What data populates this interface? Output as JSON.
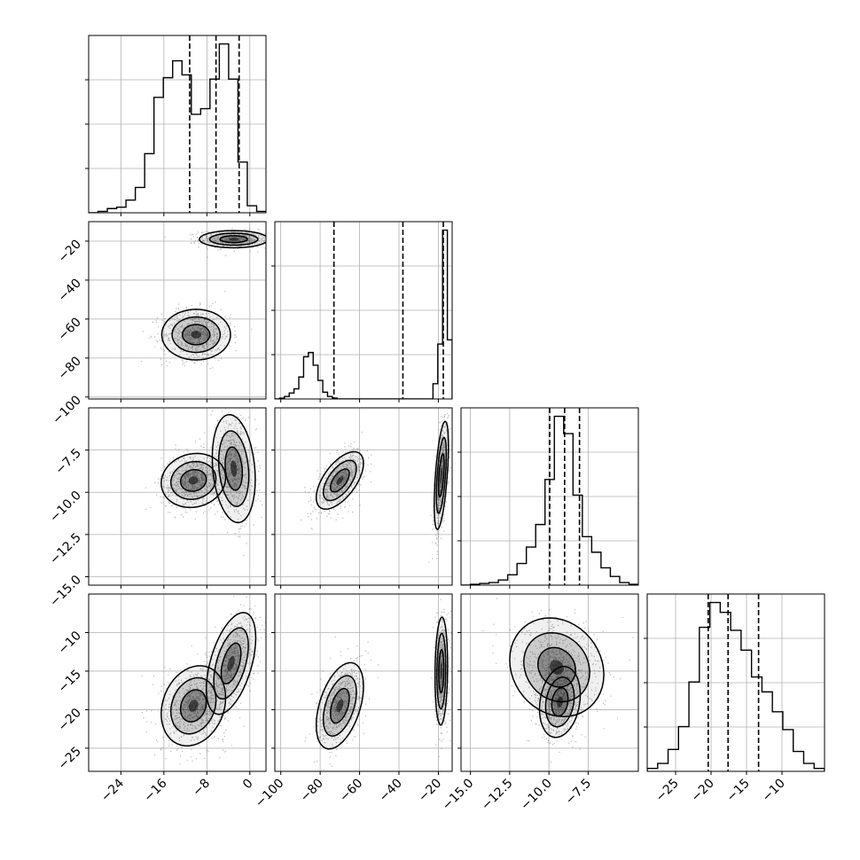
{
  "chart_data": {
    "type": "corner",
    "title": "",
    "grid": true,
    "colors": {
      "line": "#000000",
      "grid": "#b0b0b0",
      "scatter": "#000000",
      "density": "#000000"
    },
    "variables": [
      {
        "xlim": [
          -30,
          3
        ],
        "ticks": [
          -24,
          -16,
          -8,
          0
        ],
        "tick_labels": [
          "−24",
          "−16",
          "−8",
          "0"
        ],
        "quantiles": [
          -11.2,
          -6.3,
          -2.0
        ],
        "hist_counts": [
          0,
          1,
          3,
          4,
          9,
          18,
          42,
          82,
          96,
          108,
          98,
          70,
          74,
          95,
          120,
          95,
          36,
          5,
          1
        ]
      },
      {
        "xlim": [
          -103,
          -13
        ],
        "ticks": [
          -100,
          -80,
          -60,
          -40,
          -20
        ],
        "tick_labels": [
          "−100",
          "−80",
          "−60",
          "−40",
          "−20"
        ],
        "quantiles": [
          -73.0,
          -38.0,
          -17.5
        ],
        "hist_counts": [
          0,
          1,
          3,
          7,
          12,
          26,
          50,
          55,
          40,
          22,
          8,
          3,
          1,
          0,
          0,
          0,
          0,
          0,
          0,
          0,
          0,
          0,
          0,
          0,
          0,
          0,
          0,
          0,
          0,
          0,
          0,
          0,
          0,
          18,
          65,
          200,
          70
        ]
      },
      {
        "xlim": [
          -15.6,
          -4.3
        ],
        "ticks": [
          -15.0,
          -12.5,
          -10.0,
          -7.5
        ],
        "tick_labels": [
          "−15.0",
          "−12.5",
          "−10.0",
          "−7.5"
        ],
        "quantiles": [
          -9.95,
          -9.0,
          -8.05
        ],
        "hist_counts": [
          0,
          1,
          2,
          3,
          6,
          12,
          25,
          44,
          70,
          122,
          195,
          175,
          104,
          56,
          38,
          20,
          10,
          3,
          1
        ]
      },
      {
        "xlim": [
          -29,
          -4
        ],
        "ticks": [
          -25,
          -20,
          -15,
          -10
        ],
        "tick_labels": [
          "−25",
          "−20",
          "−15",
          "−10"
        ],
        "quantiles": [
          -20.4,
          -17.6,
          -13.3
        ],
        "hist_counts": [
          3,
          8,
          22,
          45,
          90,
          145,
          170,
          160,
          142,
          122,
          95,
          80,
          60,
          42,
          20,
          8,
          3
        ]
      }
    ],
    "ylim": {
      "1": [
        -101,
        -10
      ],
      "2": [
        -15.5,
        -5
      ],
      "3": [
        -28,
        -5
      ]
    },
    "ytick_labels": {
      "1": {
        "ticks": [
          -20,
          -40,
          -60,
          -80,
          -100
        ],
        "labels": [
          "−20",
          "−40",
          "−60",
          "−80",
          "−100"
        ]
      },
      "2": {
        "ticks": [
          -7.5,
          -10.0,
          -12.5,
          -15.0
        ],
        "labels": [
          "−7.5",
          "−10.0",
          "−12.5",
          "−15.0"
        ]
      },
      "3": {
        "ticks": [
          -10,
          -15,
          -20,
          -25
        ],
        "labels": [
          "−10",
          "−15",
          "−20",
          "−25"
        ]
      }
    },
    "joint_modes": {
      "1-0": [
        {
          "mx": -3,
          "my": -19,
          "sx": 3.2,
          "sy": 2.2,
          "rho": 0,
          "w": 0.5
        },
        {
          "mx": -10,
          "my": -68,
          "sx": 3.2,
          "sy": 6.5,
          "rho": 0,
          "w": 0.5
        }
      ],
      "2-0": [
        {
          "mx": -10.5,
          "my": -9.3,
          "sx": 3.0,
          "sy": 0.8,
          "rho": 0.1,
          "w": 0.55
        },
        {
          "mx": -3,
          "my": -8.6,
          "sx": 2.0,
          "sy": 1.6,
          "rho": -0.2,
          "w": 0.45
        }
      ],
      "2-1": [
        {
          "mx": -70,
          "my": -9.3,
          "sx": 6.0,
          "sy": 0.85,
          "rho": 0.6,
          "w": 0.5
        },
        {
          "mx": -18.5,
          "my": -9.0,
          "sx": 1.8,
          "sy": 1.6,
          "rho": 0.55,
          "w": 0.5
        }
      ],
      "3-0": [
        {
          "mx": -10.5,
          "my": -19.5,
          "sx": 3.0,
          "sy": 2.6,
          "rho": 0.2,
          "w": 0.5
        },
        {
          "mx": -3.5,
          "my": -14.0,
          "sx": 2.3,
          "sy": 3.3,
          "rho": 0.5,
          "w": 0.5
        }
      ],
      "3-1": [
        {
          "mx": -70,
          "my": -19.5,
          "sx": 6.0,
          "sy": 2.8,
          "rho": 0.45,
          "w": 0.5
        },
        {
          "mx": -18.5,
          "my": -15.0,
          "sx": 1.6,
          "sy": 3.5,
          "rho": 0.1,
          "w": 0.5
        }
      ],
      "3-2": [
        {
          "mx": -9.3,
          "my": -19.0,
          "sx": 0.65,
          "sy": 2.3,
          "rho": 0.2,
          "w": 0.55
        },
        {
          "mx": -9.5,
          "my": -14.5,
          "sx": 1.5,
          "sy": 3.2,
          "rho": -0.15,
          "w": 0.45
        }
      ]
    }
  }
}
